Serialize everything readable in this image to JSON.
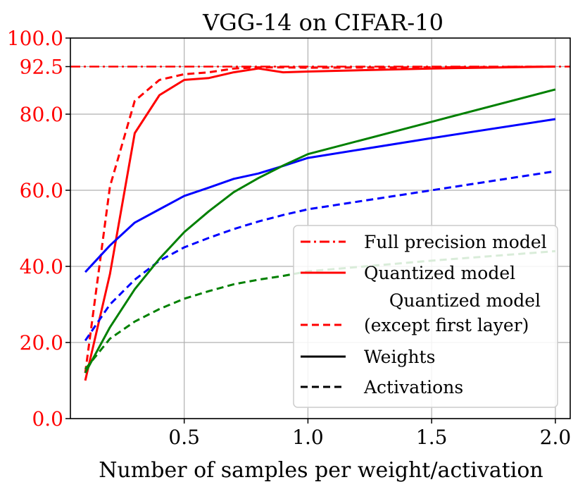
{
  "chart_data": {
    "type": "line",
    "title": "VGG-14 on CIFAR-10",
    "xlabel": "Number of samples per weight/activation",
    "ylabel": "",
    "xlim": [
      0.04,
      2.06
    ],
    "ylim": [
      0,
      100
    ],
    "xticks": [
      0.5,
      1.0,
      1.5,
      2.0
    ],
    "xtick_labels": [
      "0.5",
      "1.0",
      "1.5",
      "2.0"
    ],
    "yticks": [
      0,
      20,
      40,
      60,
      80,
      92.5,
      100
    ],
    "ytick_labels": [
      "0.0",
      "20.0",
      "40.0",
      "60.0",
      "80.0",
      "92.5",
      "100.0"
    ],
    "ytick_label_color": "#ff0000",
    "grid": true,
    "legend_position": "lower-right",
    "colors": {
      "red": "#ff0000",
      "blue": "#0000ff",
      "green": "#008000",
      "black": "#000000"
    },
    "full_precision_value": 92.5,
    "series": [
      {
        "name": "Quantized model - Weights",
        "color": "red",
        "style": "solid",
        "x": [
          0.1,
          0.2,
          0.3,
          0.4,
          0.5,
          0.6,
          0.7,
          0.8,
          0.9,
          1.0,
          1.5,
          2.0
        ],
        "values": [
          10,
          38,
          75,
          85,
          89,
          89.5,
          91,
          92,
          91,
          91.2,
          92,
          92.5
        ]
      },
      {
        "name": "Quantized model (except first layer) - Activations",
        "color": "red",
        "style": "dashed",
        "x": [
          0.1,
          0.2,
          0.3,
          0.4,
          0.5,
          0.6,
          0.7,
          0.8,
          0.9,
          1.0,
          1.5,
          2.0
        ],
        "values": [
          12,
          61,
          83.5,
          89,
          90.5,
          91,
          92,
          92.3,
          92.3,
          92.2,
          92.3,
          92.5
        ]
      },
      {
        "name": "Blue - Weights",
        "color": "blue",
        "style": "solid",
        "x": [
          0.1,
          0.2,
          0.3,
          0.4,
          0.5,
          0.6,
          0.7,
          0.8,
          0.9,
          1.0,
          1.5,
          2.0
        ],
        "values": [
          38.5,
          45.5,
          51.5,
          55,
          58.5,
          60.7,
          63,
          64.4,
          66.4,
          68.5,
          73.7,
          78.7
        ]
      },
      {
        "name": "Blue - Activations",
        "color": "blue",
        "style": "dashed",
        "x": [
          0.1,
          0.2,
          0.3,
          0.4,
          0.5,
          0.6,
          0.7,
          0.8,
          0.9,
          1.0,
          1.5,
          2.0
        ],
        "values": [
          20.5,
          30,
          36.5,
          41.5,
          45,
          47.5,
          49.8,
          51.8,
          53.5,
          55,
          60,
          65
        ]
      },
      {
        "name": "Green - Weights",
        "color": "green",
        "style": "solid",
        "x": [
          0.1,
          0.2,
          0.3,
          0.4,
          0.5,
          0.6,
          0.7,
          0.8,
          0.9,
          1.0,
          1.5,
          2.0
        ],
        "values": [
          12,
          24,
          34,
          42,
          49,
          54.5,
          59.5,
          63.2,
          66.5,
          69.5,
          78,
          86.5
        ]
      },
      {
        "name": "Green - Activations",
        "color": "green",
        "style": "dashed",
        "x": [
          0.1,
          0.2,
          0.3,
          0.4,
          0.5,
          0.6,
          0.7,
          0.8,
          0.9,
          1.0,
          1.5,
          2.0
        ],
        "values": [
          13,
          21,
          25.5,
          28.8,
          31.5,
          33.5,
          35.3,
          36.5,
          37.5,
          38.7,
          41.5,
          44
        ]
      }
    ],
    "legend": [
      {
        "label": "Full precision model",
        "color": "red",
        "style": "dashdot"
      },
      {
        "label": "Quantized model",
        "color": "red",
        "style": "solid"
      },
      {
        "label": "Quantized model",
        "label2": "(except first layer)",
        "color": "red",
        "style": "dashed"
      },
      {
        "label": "Weights",
        "color": "black",
        "style": "solid"
      },
      {
        "label": "Activations",
        "color": "black",
        "style": "dashed"
      }
    ]
  }
}
